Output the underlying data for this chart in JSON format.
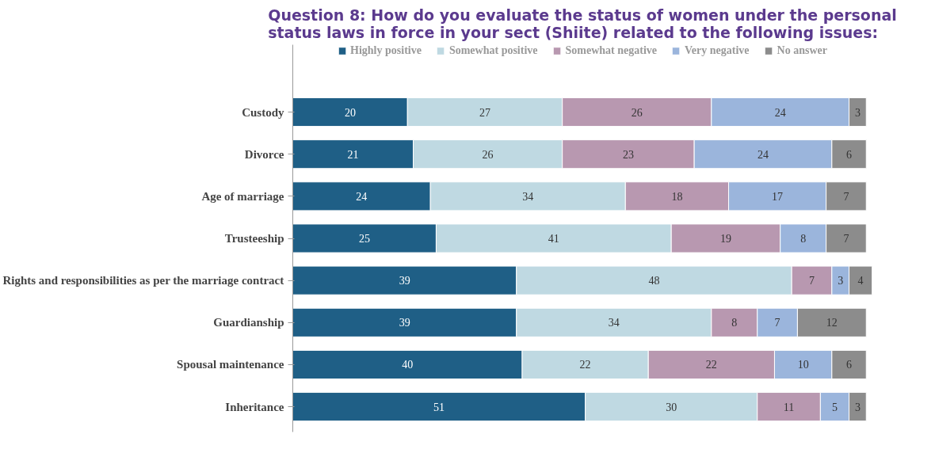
{
  "chart_data": {
    "type": "bar",
    "orientation": "horizontal",
    "stacked": true,
    "title": "Question 8: How do you evaluate the status of women under the personal\nstatus laws in force in your sect (Shiite) related to the following issues:",
    "categories": [
      "Custody",
      "Divorce",
      "Age of marriage",
      "Trusteeship",
      "Rights and responsibilities as per the marriage contract",
      "Guardianship",
      "Spousal maintenance",
      "Inheritance"
    ],
    "series": [
      {
        "name": "Highly positive",
        "color": "#1f5f86",
        "values": [
          20,
          21,
          24,
          25,
          39,
          39,
          40,
          51
        ]
      },
      {
        "name": "Somewhat positive",
        "color": "#bfd9e2",
        "values": [
          27,
          26,
          34,
          41,
          48,
          34,
          22,
          30
        ]
      },
      {
        "name": "Somewhat negative",
        "color": "#b898b0",
        "values": [
          26,
          23,
          18,
          19,
          7,
          8,
          22,
          11
        ]
      },
      {
        "name": "Very negative",
        "color": "#9bb5dc",
        "values": [
          24,
          24,
          17,
          8,
          3,
          7,
          10,
          5
        ]
      },
      {
        "name": "No answer",
        "color": "#8c8c8c",
        "values": [
          3,
          6,
          7,
          7,
          4,
          12,
          6,
          3
        ]
      }
    ],
    "data_labels": true,
    "legend": "top",
    "grid": false,
    "tick_labels": "y"
  }
}
